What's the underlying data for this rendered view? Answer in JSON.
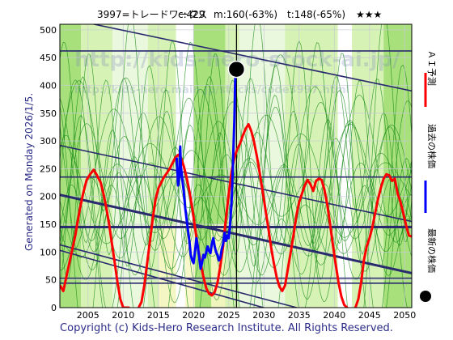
{
  "header": {
    "stock": "3997=トレードワークス",
    "current": "c:429",
    "m_forecast": "m:160(-63%)",
    "t_forecast": "t:148(-65%)",
    "stars": "★★★"
  },
  "side_note": "Generated on Monday 2026/1/5.",
  "copyright": "Copyright (c) Kids-Hero Research Institute. All Rights Reserved.",
  "watermark": {
    "line1": "http://kids-hero-stock-ai.jp/",
    "line2": "http://kids-hero.main.jp/stocks/code3997.html"
  },
  "legend": [
    {
      "label": "ＡＩ予測",
      "color": "#ff0000"
    },
    {
      "label": "過去の株価",
      "color": "#0000ff"
    },
    {
      "label": "最新の株価",
      "color": "#000000"
    }
  ],
  "colors": {
    "band_green": "#a8e07c",
    "band_light": "#d6f2b4",
    "band_pale": "#eaf8dd",
    "band_white": "#ffffff",
    "band_yellow": "#f7f7c5",
    "thin_green": "#118811",
    "trend_line": "#2a2a6e",
    "ai": "#ff0000",
    "past": "#0000ff"
  },
  "chart_data": {
    "type": "line",
    "xlim": [
      2001,
      2051
    ],
    "ylim": [
      0,
      510
    ],
    "xticks": [
      2005,
      2010,
      2015,
      2020,
      2025,
      2030,
      2035,
      2040,
      2045,
      2050
    ],
    "yticks": [
      0,
      50,
      100,
      150,
      200,
      250,
      300,
      350,
      400,
      450,
      500
    ],
    "grid": true,
    "latest": {
      "x": 2026.1,
      "y": 429
    },
    "marker_x": 2026.1,
    "series": [
      {
        "name": "ＡＩ予測",
        "points": [
          [
            2001.0,
            40
          ],
          [
            2001.5,
            30
          ],
          [
            2002.0,
            60
          ],
          [
            2002.6,
            95
          ],
          [
            2003.2,
            130
          ],
          [
            2003.8,
            175
          ],
          [
            2004.3,
            205
          ],
          [
            2004.8,
            230
          ],
          [
            2005.3,
            240
          ],
          [
            2005.8,
            248
          ],
          [
            2006.2,
            240
          ],
          [
            2006.8,
            225
          ],
          [
            2007.2,
            205
          ],
          [
            2007.6,
            180
          ],
          [
            2008.0,
            150
          ],
          [
            2008.4,
            115
          ],
          [
            2008.8,
            80
          ],
          [
            2009.2,
            45
          ],
          [
            2009.6,
            15
          ],
          [
            2010.0,
            0
          ],
          [
            2010.8,
            0
          ],
          [
            2011.4,
            -10
          ],
          [
            2012.0,
            -5
          ],
          [
            2012.6,
            10
          ],
          [
            2013.0,
            40
          ],
          [
            2013.4,
            80
          ],
          [
            2013.8,
            120
          ],
          [
            2014.2,
            160
          ],
          [
            2014.6,
            195
          ],
          [
            2015.0,
            215
          ],
          [
            2015.4,
            225
          ],
          [
            2015.8,
            235
          ],
          [
            2016.2,
            242
          ],
          [
            2016.6,
            250
          ],
          [
            2017.0,
            260
          ],
          [
            2017.4,
            270
          ],
          [
            2017.8,
            275
          ],
          [
            2018.2,
            270
          ],
          [
            2018.6,
            255
          ],
          [
            2019.0,
            235
          ],
          [
            2019.4,
            210
          ],
          [
            2019.8,
            180
          ],
          [
            2020.2,
            145
          ],
          [
            2020.6,
            110
          ],
          [
            2021.0,
            80
          ],
          [
            2021.4,
            55
          ],
          [
            2021.8,
            35
          ],
          [
            2022.2,
            25
          ],
          [
            2022.6,
            22
          ],
          [
            2023.0,
            28
          ],
          [
            2023.4,
            45
          ],
          [
            2023.8,
            75
          ],
          [
            2024.2,
            110
          ],
          [
            2024.6,
            160
          ],
          [
            2025.0,
            205
          ],
          [
            2025.4,
            245
          ],
          [
            2025.8,
            270
          ],
          [
            2026.2,
            285
          ],
          [
            2026.6,
            295
          ],
          [
            2027.0,
            310
          ],
          [
            2027.4,
            322
          ],
          [
            2027.8,
            330
          ],
          [
            2028.2,
            318
          ],
          [
            2028.6,
            298
          ],
          [
            2029.0,
            272
          ],
          [
            2029.4,
            242
          ],
          [
            2029.8,
            210
          ],
          [
            2030.2,
            178
          ],
          [
            2030.6,
            145
          ],
          [
            2031.0,
            110
          ],
          [
            2031.4,
            80
          ],
          [
            2031.8,
            55
          ],
          [
            2032.2,
            38
          ],
          [
            2032.6,
            30
          ],
          [
            2033.0,
            40
          ],
          [
            2033.4,
            70
          ],
          [
            2033.8,
            100
          ],
          [
            2034.2,
            130
          ],
          [
            2034.6,
            165
          ],
          [
            2035.0,
            190
          ],
          [
            2035.4,
            205
          ],
          [
            2035.8,
            220
          ],
          [
            2036.2,
            230
          ],
          [
            2036.6,
            222
          ],
          [
            2037.0,
            210
          ],
          [
            2037.4,
            228
          ],
          [
            2037.8,
            232
          ],
          [
            2038.2,
            230
          ],
          [
            2038.6,
            212
          ],
          [
            2039.0,
            185
          ],
          [
            2039.4,
            150
          ],
          [
            2039.8,
            112
          ],
          [
            2040.2,
            78
          ],
          [
            2040.6,
            45
          ],
          [
            2041.0,
            20
          ],
          [
            2041.4,
            5
          ],
          [
            2041.8,
            0
          ],
          [
            2042.4,
            -10
          ],
          [
            2043.0,
            0
          ],
          [
            2043.4,
            15
          ],
          [
            2043.8,
            45
          ],
          [
            2044.2,
            85
          ],
          [
            2044.6,
            110
          ],
          [
            2045.0,
            125
          ],
          [
            2045.4,
            145
          ],
          [
            2045.8,
            170
          ],
          [
            2046.2,
            195
          ],
          [
            2046.6,
            215
          ],
          [
            2047.0,
            232
          ],
          [
            2047.4,
            240
          ],
          [
            2047.8,
            238
          ],
          [
            2048.2,
            228
          ],
          [
            2048.6,
            232
          ],
          [
            2049.0,
            205
          ],
          [
            2049.4,
            190
          ],
          [
            2049.8,
            170
          ],
          [
            2050.2,
            148
          ],
          [
            2050.6,
            130
          ],
          [
            2051.0,
            128
          ]
        ]
      },
      {
        "name": "過去の株価",
        "points": [
          [
            2017.6,
            270
          ],
          [
            2017.8,
            220
          ],
          [
            2018.0,
            240
          ],
          [
            2018.1,
            290
          ],
          [
            2018.2,
            255
          ],
          [
            2018.4,
            230
          ],
          [
            2018.6,
            210
          ],
          [
            2018.8,
            180
          ],
          [
            2019.0,
            160
          ],
          [
            2019.2,
            140
          ],
          [
            2019.4,
            120
          ],
          [
            2019.6,
            95
          ],
          [
            2019.8,
            85
          ],
          [
            2020.0,
            80
          ],
          [
            2020.2,
            100
          ],
          [
            2020.4,
            125
          ],
          [
            2020.6,
            110
          ],
          [
            2020.8,
            90
          ],
          [
            2021.0,
            70
          ],
          [
            2021.2,
            80
          ],
          [
            2021.4,
            95
          ],
          [
            2021.6,
            90
          ],
          [
            2021.8,
            100
          ],
          [
            2022.0,
            110
          ],
          [
            2022.2,
            102
          ],
          [
            2022.4,
            98
          ],
          [
            2022.6,
            115
          ],
          [
            2022.8,
            125
          ],
          [
            2023.0,
            110
          ],
          [
            2023.2,
            100
          ],
          [
            2023.4,
            95
          ],
          [
            2023.6,
            85
          ],
          [
            2023.8,
            90
          ],
          [
            2024.0,
            105
          ],
          [
            2024.2,
            115
          ],
          [
            2024.4,
            135
          ],
          [
            2024.6,
            120
          ],
          [
            2024.8,
            130
          ],
          [
            2025.0,
            125
          ],
          [
            2025.2,
            150
          ],
          [
            2025.4,
            190
          ],
          [
            2025.6,
            260
          ],
          [
            2025.8,
            340
          ],
          [
            2025.9,
            400
          ],
          [
            2026.0,
            440
          ],
          [
            2026.1,
            429
          ]
        ]
      }
    ],
    "trend_lines": [
      [
        2001,
        462,
        2051,
        462
      ],
      [
        2001,
        235,
        2051,
        235
      ],
      [
        2001,
        145,
        2051,
        145
      ],
      [
        2001,
        53,
        2051,
        53
      ],
      [
        2001,
        44,
        2051,
        44
      ],
      [
        2001,
        523,
        2051,
        390
      ],
      [
        2001,
        292,
        2051,
        155
      ],
      [
        2001,
        203,
        2051,
        62
      ],
      [
        2001,
        113,
        2051,
        -55
      ],
      [
        2001,
        103,
        2051,
        -75
      ]
    ],
    "bands": [
      {
        "from": 2001.0,
        "to": 2004.0,
        "tone": "band_green"
      },
      {
        "from": 2004.0,
        "to": 2008.5,
        "tone": "band_light"
      },
      {
        "from": 2008.5,
        "to": 2013.5,
        "tone": "band_pale"
      },
      {
        "from": 2013.5,
        "to": 2017.5,
        "tone": "band_light"
      },
      {
        "from": 2017.5,
        "to": 2020.0,
        "tone": "band_white"
      },
      {
        "from": 2020.0,
        "to": 2024.5,
        "tone": "band_green"
      },
      {
        "from": 2024.5,
        "to": 2026.5,
        "tone": "band_light"
      },
      {
        "from": 2026.5,
        "to": 2033.0,
        "tone": "band_pale"
      },
      {
        "from": 2033.0,
        "to": 2040.5,
        "tone": "band_light"
      },
      {
        "from": 2040.5,
        "to": 2042.5,
        "tone": "band_white"
      },
      {
        "from": 2042.5,
        "to": 2047.0,
        "tone": "band_light"
      },
      {
        "from": 2047.0,
        "to": 2051.0,
        "tone": "band_green"
      }
    ],
    "yellow_bands": [
      {
        "from": 2015.0,
        "to": 2017.5
      },
      {
        "from": 2018.8,
        "to": 2020.2
      },
      {
        "from": 2022.5,
        "to": 2024.5
      }
    ]
  }
}
